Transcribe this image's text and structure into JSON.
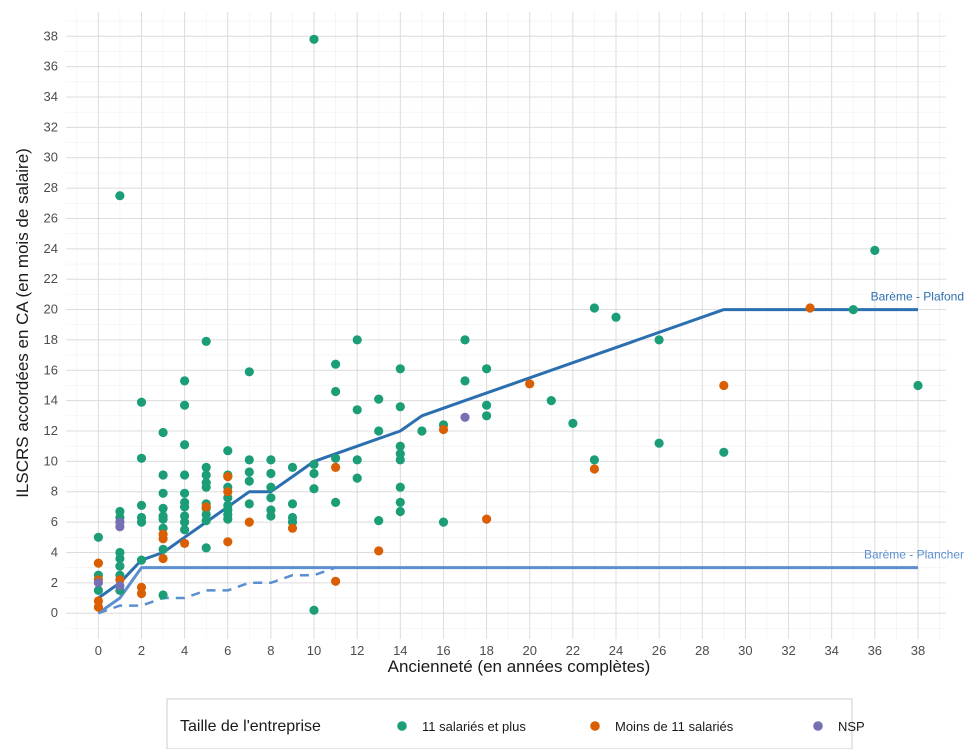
{
  "chart_data": {
    "type": "scatter",
    "xlabel": "Ancienneté (en années complètes)",
    "ylabel": "ILSCRS accordées en CA (en mois de salaire)",
    "xlim": [
      -1.5,
      39.3
    ],
    "ylim": [
      -1.7,
      39.6
    ],
    "x_ticks": [
      0,
      2,
      4,
      6,
      8,
      10,
      12,
      14,
      16,
      18,
      20,
      22,
      24,
      26,
      28,
      30,
      32,
      34,
      36,
      38
    ],
    "y_ticks": [
      0,
      2,
      4,
      6,
      8,
      10,
      12,
      14,
      16,
      18,
      20,
      22,
      24,
      26,
      28,
      30,
      32,
      34,
      36,
      38
    ],
    "grid": true,
    "legend": {
      "title": "Taille de l'entreprise",
      "position": "bottom",
      "entries": [
        {
          "label": "11 salariés et plus",
          "color": "#1b9e77"
        },
        {
          "label": "Moins de 11 salariés",
          "color": "#d95f02"
        },
        {
          "label": "NSP",
          "color": "#7570b3"
        }
      ]
    },
    "lines": [
      {
        "label": "Barème - Plafond",
        "color": "#2c6fb0",
        "style": "solid",
        "points": [
          [
            0,
            1
          ],
          [
            1,
            2
          ],
          [
            2,
            3.5
          ],
          [
            3,
            4
          ],
          [
            4,
            5
          ],
          [
            5,
            6
          ],
          [
            6,
            7
          ],
          [
            7,
            8
          ],
          [
            8,
            8
          ],
          [
            9,
            9
          ],
          [
            10,
            10
          ],
          [
            11,
            10.5
          ],
          [
            12,
            11
          ],
          [
            13,
            11.5
          ],
          [
            14,
            12
          ],
          [
            15,
            13
          ],
          [
            16,
            13.5
          ],
          [
            17,
            14
          ],
          [
            29,
            20
          ],
          [
            38,
            20
          ]
        ]
      },
      {
        "label": "Barème - Plancher",
        "color": "#5b8fd0",
        "style": "solid",
        "points": [
          [
            0,
            0
          ],
          [
            1,
            1
          ],
          [
            2,
            3
          ],
          [
            38,
            3
          ]
        ]
      },
      {
        "label": "",
        "color": "#5b8fd0",
        "style": "dashed",
        "points": [
          [
            0,
            0
          ],
          [
            1,
            0.5
          ],
          [
            2,
            0.5
          ],
          [
            3,
            1
          ],
          [
            4,
            1
          ],
          [
            5,
            1.5
          ],
          [
            6,
            1.5
          ],
          [
            7,
            2
          ],
          [
            8,
            2
          ],
          [
            9,
            2.5
          ],
          [
            10,
            2.5
          ],
          [
            11,
            3
          ]
        ]
      }
    ],
    "series": [
      {
        "name": "11 salariés et plus",
        "color": "#1b9e77",
        "points": [
          [
            0,
            5
          ],
          [
            0,
            2.5
          ],
          [
            0,
            1.5
          ],
          [
            1,
            27.5
          ],
          [
            1,
            6.7
          ],
          [
            1,
            6.3
          ],
          [
            1,
            4
          ],
          [
            1,
            3.6
          ],
          [
            1,
            3.1
          ],
          [
            1,
            2.5
          ],
          [
            1,
            1.5
          ],
          [
            2,
            13.9
          ],
          [
            2,
            10.2
          ],
          [
            2,
            7.1
          ],
          [
            2,
            6.3
          ],
          [
            2,
            6
          ],
          [
            2,
            3.5
          ],
          [
            3,
            11.9
          ],
          [
            3,
            9.1
          ],
          [
            3,
            7.9
          ],
          [
            3,
            6.9
          ],
          [
            3,
            6.4
          ],
          [
            3,
            6.2
          ],
          [
            3,
            5.6
          ],
          [
            3,
            4.2
          ],
          [
            3,
            1.2
          ],
          [
            4,
            15.3
          ],
          [
            4,
            13.7
          ],
          [
            4,
            11.1
          ],
          [
            4,
            9.1
          ],
          [
            4,
            7.9
          ],
          [
            4,
            7.3
          ],
          [
            4,
            7
          ],
          [
            4,
            6.4
          ],
          [
            4,
            6
          ],
          [
            4,
            5.5
          ],
          [
            5,
            17.9
          ],
          [
            5,
            9.6
          ],
          [
            5,
            9.1
          ],
          [
            5,
            8.6
          ],
          [
            5,
            8.3
          ],
          [
            5,
            7.2
          ],
          [
            5,
            6.9
          ],
          [
            5,
            6.5
          ],
          [
            5,
            6.1
          ],
          [
            5,
            4.3
          ],
          [
            6,
            10.7
          ],
          [
            6,
            9.1
          ],
          [
            6,
            8.3
          ],
          [
            6,
            7.6
          ],
          [
            6,
            7.1
          ],
          [
            6,
            6.8
          ],
          [
            6,
            6.5
          ],
          [
            6,
            6.2
          ],
          [
            7,
            15.9
          ],
          [
            7,
            10.1
          ],
          [
            7,
            9.3
          ],
          [
            7,
            8.7
          ],
          [
            7,
            7.2
          ],
          [
            8,
            10.1
          ],
          [
            8,
            9.2
          ],
          [
            8,
            8.3
          ],
          [
            8,
            7.6
          ],
          [
            8,
            6.8
          ],
          [
            8,
            6.4
          ],
          [
            9,
            9.6
          ],
          [
            9,
            7.2
          ],
          [
            9,
            6.3
          ],
          [
            9,
            6
          ],
          [
            10,
            37.8
          ],
          [
            10,
            9.8
          ],
          [
            10,
            9.2
          ],
          [
            10,
            8.2
          ],
          [
            10,
            0.2
          ],
          [
            11,
            16.4
          ],
          [
            11,
            14.6
          ],
          [
            11,
            10.2
          ],
          [
            11,
            7.3
          ],
          [
            12,
            18
          ],
          [
            12,
            13.4
          ],
          [
            12,
            10.1
          ],
          [
            12,
            8.9
          ],
          [
            13,
            14.1
          ],
          [
            13,
            12
          ],
          [
            13,
            6.1
          ],
          [
            14,
            16.1
          ],
          [
            14,
            13.6
          ],
          [
            14,
            11
          ],
          [
            14,
            10.5
          ],
          [
            14,
            10.1
          ],
          [
            14,
            8.3
          ],
          [
            14,
            7.3
          ],
          [
            14,
            6.7
          ],
          [
            15,
            12
          ],
          [
            16,
            12.4
          ],
          [
            16,
            6
          ],
          [
            17,
            18
          ],
          [
            17,
            15.3
          ],
          [
            18,
            16.1
          ],
          [
            18,
            13.7
          ],
          [
            18,
            13
          ],
          [
            21,
            14
          ],
          [
            22,
            12.5
          ],
          [
            23,
            20.1
          ],
          [
            23,
            10.1
          ],
          [
            24,
            19.5
          ],
          [
            26,
            18
          ],
          [
            26,
            11.2
          ],
          [
            29,
            10.6
          ],
          [
            35,
            20
          ],
          [
            36,
            23.9
          ],
          [
            38,
            15
          ]
        ]
      },
      {
        "name": "Moins de 11 salariés",
        "color": "#d95f02",
        "points": [
          [
            0,
            3.3
          ],
          [
            0,
            2.2
          ],
          [
            0,
            0.8
          ],
          [
            0,
            0.4
          ],
          [
            1,
            2.2
          ],
          [
            2,
            1.7
          ],
          [
            2,
            1.3
          ],
          [
            3,
            5.2
          ],
          [
            3,
            4.9
          ],
          [
            3,
            3.6
          ],
          [
            4,
            4.6
          ],
          [
            5,
            7
          ],
          [
            6,
            9
          ],
          [
            6,
            8
          ],
          [
            6,
            4.7
          ],
          [
            7,
            6
          ],
          [
            9,
            5.6
          ],
          [
            11,
            9.6
          ],
          [
            11,
            2.1
          ],
          [
            13,
            4.1
          ],
          [
            16,
            12.1
          ],
          [
            18,
            6.2
          ],
          [
            20,
            15.1
          ],
          [
            23,
            9.5
          ],
          [
            29,
            15
          ],
          [
            33,
            20.1
          ]
        ]
      },
      {
        "name": "NSP",
        "color": "#7570b3",
        "points": [
          [
            0,
            2
          ],
          [
            1,
            6
          ],
          [
            1,
            5.7
          ],
          [
            1,
            1.8
          ],
          [
            17,
            12.9
          ]
        ]
      }
    ]
  }
}
